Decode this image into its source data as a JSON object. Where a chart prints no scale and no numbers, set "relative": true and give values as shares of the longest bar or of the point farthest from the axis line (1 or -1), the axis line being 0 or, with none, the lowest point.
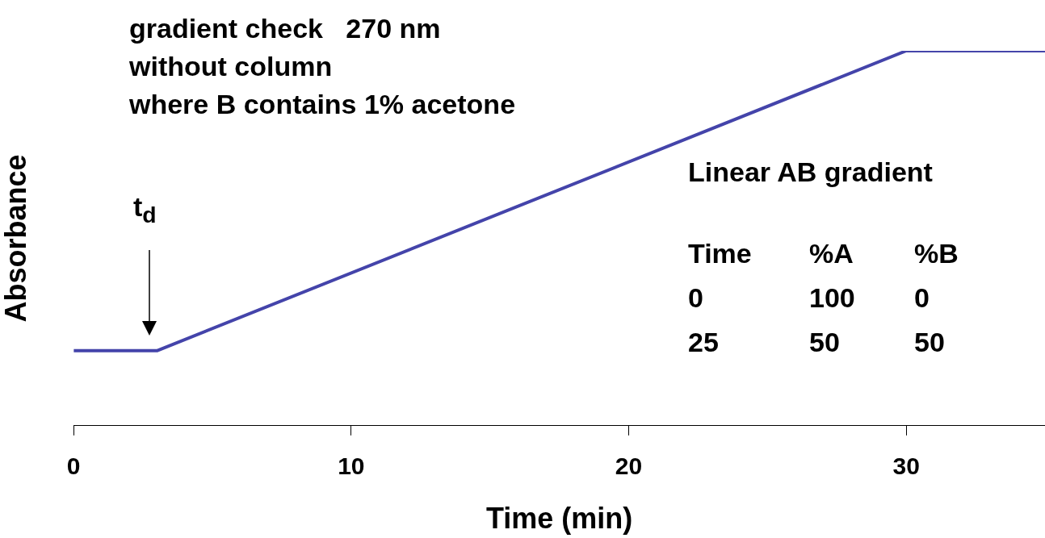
{
  "chart_data": {
    "type": "line",
    "relative": true,
    "xlabel": "Time (min)",
    "ylabel": "Absorbance",
    "x": [
      0,
      3,
      30,
      35
    ],
    "xlim": [
      0,
      35
    ],
    "xticks": [
      0,
      10,
      20,
      30
    ],
    "series": [
      {
        "color": "#4444aa",
        "values": [
          0.2,
          0.2,
          1,
          1
        ]
      }
    ],
    "marker": "none",
    "line_style": "solid",
    "grid": false,
    "legend": false,
    "annotations": [
      "gradient check   270 nm",
      "without column",
      "where B contains 1% acetone",
      "Linear AB gradient",
      "Time  %A  %B",
      "0  100  0",
      "25  50  50",
      "t$_{d}$"
    ]
  }
}
